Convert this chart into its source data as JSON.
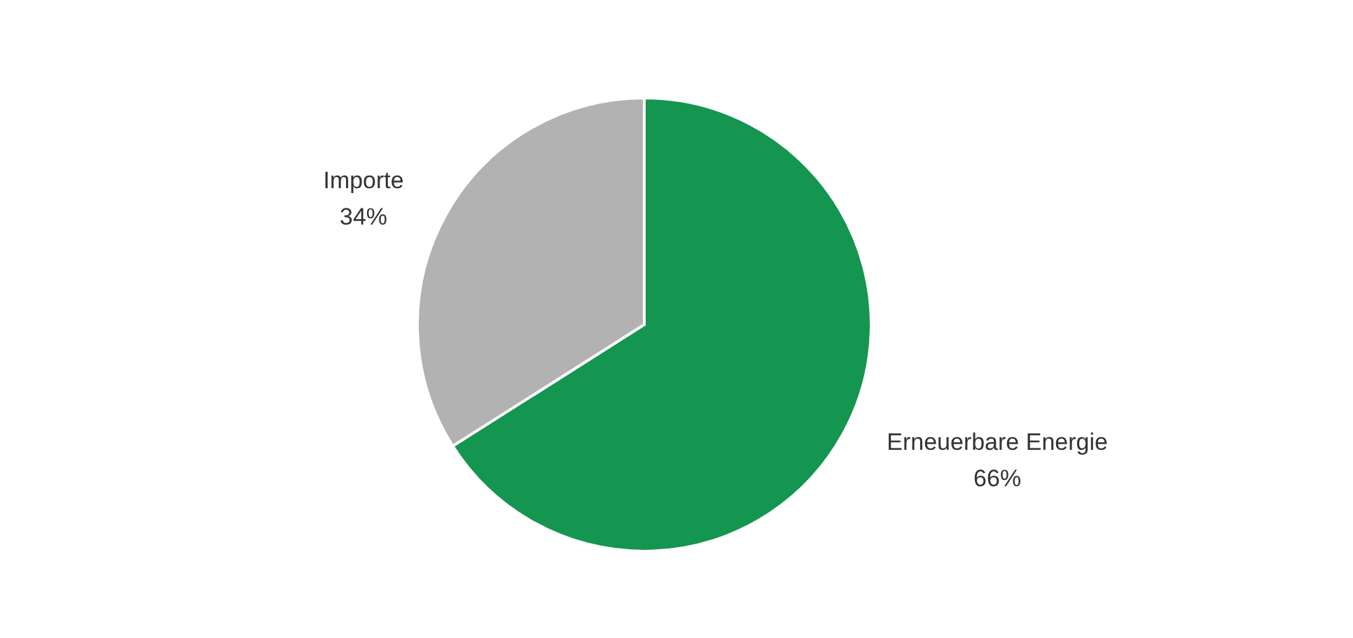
{
  "chart_data": {
    "type": "pie",
    "categories": [
      "Erneuerbare Energie",
      "Importe"
    ],
    "values": [
      66,
      34
    ],
    "colors": [
      "#149550",
      "#b2b2b2"
    ],
    "value_labels": [
      "66%",
      "34%"
    ]
  }
}
